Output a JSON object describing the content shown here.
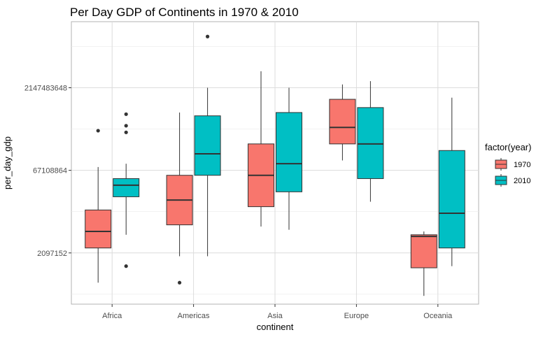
{
  "chart_data": {
    "type": "boxplot",
    "title": "Per Day GDP of Continents in 1970 & 2010",
    "xlabel": "continent",
    "ylabel": "per_day_gdp",
    "y_scale": "log2",
    "y_ticks": [
      "2097152",
      "67108864",
      "2147483648"
    ],
    "y_tick_values": [
      2097152,
      67108864,
      2147483648
    ],
    "ylim": [
      2097152,
      2147483648
    ],
    "y_tick_exponents": [
      21,
      26,
      31
    ],
    "y_range_exponents": [
      17.9,
      35.0
    ],
    "categories": [
      "Africa",
      "Americas",
      "Asia",
      "Europe",
      "Oceania"
    ],
    "grid": true,
    "legend": {
      "title": "factor(year)",
      "position": "right",
      "entries": [
        {
          "label": "1970",
          "color": "#F8766D"
        },
        {
          "label": "2010",
          "color": "#00BFC4"
        }
      ]
    },
    "series": [
      {
        "name": "1970",
        "color": "#F8766D",
        "boxes_log2": [
          {
            "category": "Africa",
            "lower_whisker": 19.2,
            "q1": 21.3,
            "median": 22.3,
            "q3": 23.6,
            "upper_whisker": 26.2,
            "outliers": [
              28.4
            ]
          },
          {
            "category": "Americas",
            "lower_whisker": 20.8,
            "q1": 22.7,
            "median": 24.2,
            "q3": 25.7,
            "upper_whisker": 29.5,
            "outliers": [
              19.2
            ]
          },
          {
            "category": "Asia",
            "lower_whisker": 22.6,
            "q1": 23.8,
            "median": 25.7,
            "q3": 27.6,
            "upper_whisker": 32.0,
            "outliers": []
          },
          {
            "category": "Europe",
            "lower_whisker": 26.6,
            "q1": 27.6,
            "median": 28.6,
            "q3": 30.3,
            "upper_whisker": 31.2,
            "outliers": []
          },
          {
            "category": "Oceania",
            "lower_whisker": 18.4,
            "q1": 20.1,
            "median": 22.0,
            "q3": 22.1,
            "upper_whisker": 22.3,
            "outliers": []
          }
        ]
      },
      {
        "name": "2010",
        "color": "#00BFC4",
        "boxes_log2": [
          {
            "category": "Africa",
            "lower_whisker": 22.1,
            "q1": 24.4,
            "median": 25.1,
            "q3": 25.5,
            "upper_whisker": 26.4,
            "outliers": [
              20.2,
              28.3,
              28.7,
              29.4
            ]
          },
          {
            "category": "Americas",
            "lower_whisker": 20.8,
            "q1": 25.7,
            "median": 27.0,
            "q3": 29.3,
            "upper_whisker": 31.0,
            "outliers": [
              34.1
            ]
          },
          {
            "category": "Asia",
            "lower_whisker": 22.4,
            "q1": 24.7,
            "median": 26.4,
            "q3": 29.5,
            "upper_whisker": 31.0,
            "outliers": []
          },
          {
            "category": "Europe",
            "lower_whisker": 24.1,
            "q1": 25.5,
            "median": 27.6,
            "q3": 29.8,
            "upper_whisker": 31.4,
            "outliers": []
          },
          {
            "category": "Oceania",
            "lower_whisker": 20.2,
            "q1": 21.3,
            "median": 23.4,
            "q3": 27.2,
            "upper_whisker": 30.4,
            "outliers": []
          }
        ]
      }
    ]
  }
}
